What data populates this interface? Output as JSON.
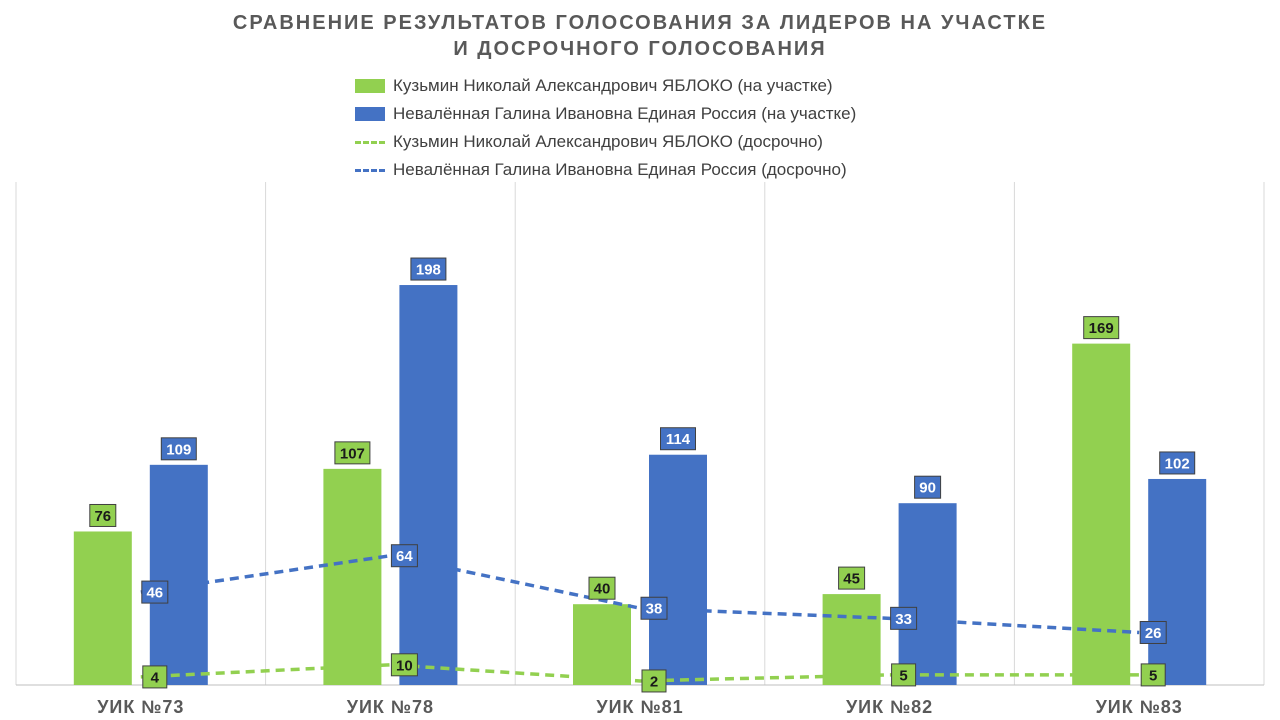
{
  "title": {
    "line1": "СРАВНЕНИЕ РЕЗУЛЬТАТОВ ГОЛОСОВАНИЯ ЗА ЛИДЕРОВ НА УЧАСТКЕ",
    "line2": "И ДОСРОЧНОГО ГОЛОСОВАНИЯ"
  },
  "colors": {
    "green": "#92d050",
    "blue": "#4472c4",
    "title": "#595959",
    "grid": "#d9d9d9"
  },
  "chart_data": {
    "type": "bar",
    "title": "СРАВНЕНИЕ РЕЗУЛЬТАТОВ ГОЛОСОВАНИЯ ЗА ЛИДЕРОВ НА УЧАСТКЕ И ДОСРОЧНОГО ГОЛОСОВАНИЯ",
    "categories": [
      "УИК №73",
      "УИК №78",
      "УИК №81",
      "УИК №82",
      "УИК №83"
    ],
    "ylim": [
      0,
      230
    ],
    "grid": "vertical",
    "legend": "top",
    "series": [
      {
        "name": "Кузьмин Николай Александрович ЯБЛОКО (на участке)",
        "type": "bar",
        "color": "#92d050",
        "values": [
          76,
          107,
          40,
          45,
          169
        ]
      },
      {
        "name": "Невалённая Галина Ивановна Единая Россия (на участке)",
        "type": "bar",
        "color": "#4472c4",
        "values": [
          109,
          198,
          114,
          90,
          102
        ]
      },
      {
        "name": "Кузьмин Николай Александрович ЯБЛОКО (досрочно)",
        "type": "line",
        "style": "dashed",
        "color": "#92d050",
        "values": [
          4,
          10,
          2,
          5,
          5
        ]
      },
      {
        "name": "Невалённая Галина Ивановна Единая Россия (досрочно)",
        "type": "line",
        "style": "dashed",
        "color": "#4472c4",
        "values": [
          46,
          64,
          38,
          33,
          26
        ]
      }
    ]
  }
}
